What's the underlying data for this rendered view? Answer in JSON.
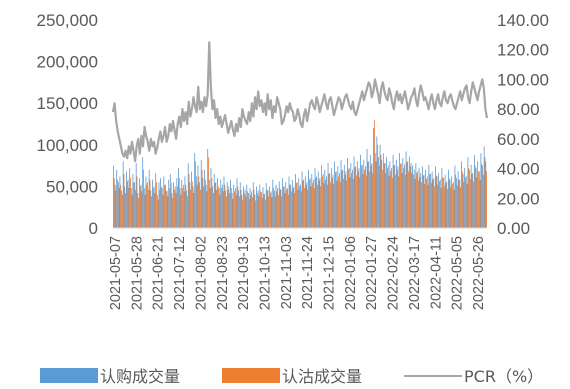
{
  "chart_data": {
    "type": "bar",
    "title": "",
    "left_axis": {
      "ylim": [
        0,
        250000
      ],
      "ticks": [
        {
          "value": 0,
          "label": "0"
        },
        {
          "value": 50000,
          "label": "50,000"
        },
        {
          "value": 100000,
          "label": "100,000"
        },
        {
          "value": 150000,
          "label": "150,000"
        },
        {
          "value": 200000,
          "label": "200,000"
        },
        {
          "value": 250000,
          "label": "250,000"
        }
      ]
    },
    "right_axis": {
      "ylim": [
        0,
        140
      ],
      "ticks": [
        {
          "value": 0,
          "label": "0.00"
        },
        {
          "value": 20,
          "label": "20.00"
        },
        {
          "value": 40,
          "label": "40.00"
        },
        {
          "value": 60,
          "label": "60.00"
        },
        {
          "value": 80,
          "label": "80.00"
        },
        {
          "value": 100,
          "label": "100.00"
        },
        {
          "value": 120,
          "label": "120.00"
        },
        {
          "value": 140,
          "label": "140.00"
        }
      ]
    },
    "x_ticks": [
      "2021-05-07",
      "2021-05-28",
      "2021-06-21",
      "2021-07-12",
      "2021-08-02",
      "2021-08-23",
      "2021-09-13",
      "2021-10-13",
      "2021-11-03",
      "2021-11-24",
      "2021-12-15",
      "2022-01-06",
      "2022-01-27",
      "2022-02-24",
      "2022-03-17",
      "2022-04-11",
      "2022-05-05",
      "2022-05-26"
    ],
    "grid": false,
    "legend_position": "bottom",
    "series": [
      {
        "name": "认购成交量",
        "type": "bar",
        "axis": "left",
        "color": "#5B9BD5",
        "values": [
          75000,
          52000,
          70000,
          55000,
          62000,
          45000,
          80000,
          50000,
          68000,
          58000,
          72000,
          48000,
          65000,
          55000,
          78000,
          42000,
          60000,
          52000,
          85000,
          48000,
          62000,
          55000,
          70000,
          45000,
          58000,
          50000,
          66000,
          40000,
          55000,
          60000,
          48000,
          62000,
          52000,
          45000,
          58000,
          65000,
          42000,
          55000,
          50000,
          60000,
          72000,
          48000,
          58000,
          52000,
          62000,
          45000,
          78000,
          55000,
          68000,
          50000,
          90000,
          62000,
          75000,
          55000,
          82000,
          60000,
          70000,
          52000,
          95000,
          58000,
          72000,
          50000,
          65000,
          55000,
          60000,
          48000,
          58000,
          52000,
          62000,
          45000,
          55000,
          50000,
          58000,
          42000,
          52000,
          48000,
          60000,
          45000,
          55000,
          40000,
          50000,
          46000,
          52000,
          42000,
          48000,
          44000,
          55000,
          40000,
          50000,
          45000,
          52000,
          43000,
          49000,
          41000,
          54000,
          46000,
          50000,
          44000,
          58000,
          45000,
          52000,
          48000,
          56000,
          46000,
          60000,
          50000,
          55000,
          48000,
          62000,
          52000,
          58000,
          50000,
          65000,
          55000,
          60000,
          52000,
          68000,
          58000,
          62000,
          55000,
          70000,
          60000,
          65000,
          58000,
          72000,
          62000,
          68000,
          60000,
          75000,
          65000,
          70000,
          62000,
          78000,
          66000,
          72000,
          64000,
          80000,
          68000,
          74000,
          66000,
          82000,
          70000,
          76000,
          68000,
          84000,
          72000,
          78000,
          70000,
          86000,
          74000,
          80000,
          72000,
          88000,
          76000,
          82000,
          74000,
          95000,
          80000,
          88000,
          78000,
          120000,
          90000,
          110000,
          85000,
          100000,
          82000,
          90000,
          78000,
          85000,
          75000,
          80000,
          72000,
          88000,
          76000,
          82000,
          74000,
          90000,
          78000,
          84000,
          76000,
          92000,
          80000,
          86000,
          78000,
          75000,
          70000,
          78000,
          68000,
          72000,
          66000,
          74000,
          64000,
          70000,
          62000,
          76000,
          65000,
          68000,
          60000,
          74000,
          62000,
          66000,
          58000,
          72000,
          60000,
          64000,
          56000,
          70000,
          58000,
          62000,
          55000,
          75000,
          60000,
          68000,
          58000,
          80000,
          65000,
          72000,
          62000,
          85000,
          70000,
          76000,
          66000,
          88000,
          72000,
          80000,
          68000,
          90000,
          75000,
          98000,
          80000
        ]
      },
      {
        "name": "认沽成交量",
        "type": "bar",
        "axis": "left",
        "color": "#ED7D31",
        "values": [
          60000,
          45000,
          58000,
          48000,
          52000,
          40000,
          65000,
          42000,
          56000,
          48000,
          60000,
          40000,
          55000,
          46000,
          62000,
          36000,
          50000,
          44000,
          70000,
          40000,
          52000,
          46000,
          58000,
          38000,
          48000,
          42000,
          55000,
          34000,
          46000,
          50000,
          40000,
          52000,
          44000,
          38000,
          48000,
          54000,
          36000,
          46000,
          42000,
          50000,
          60000,
          40000,
          48000,
          44000,
          52000,
          38000,
          65000,
          46000,
          56000,
          42000,
          80000,
          52000,
          62000,
          46000,
          70000,
          50000,
          58000,
          44000,
          85000,
          48000,
          60000,
          42000,
          54000,
          46000,
          50000,
          40000,
          48000,
          44000,
          52000,
          38000,
          46000,
          42000,
          48000,
          35000,
          44000,
          40000,
          50000,
          38000,
          46000,
          34000,
          42000,
          38000,
          44000,
          35000,
          40000,
          37000,
          46000,
          33000,
          42000,
          38000,
          44000,
          36000,
          41000,
          34000,
          45000,
          38000,
          42000,
          37000,
          48000,
          38000,
          44000,
          40000,
          47000,
          38000,
          50000,
          42000,
          46000,
          40000,
          52000,
          44000,
          48000,
          42000,
          54000,
          46000,
          50000,
          44000,
          57000,
          48000,
          52000,
          46000,
          58000,
          50000,
          54000,
          48000,
          60000,
          52000,
          57000,
          50000,
          62000,
          54000,
          58000,
          52000,
          65000,
          55000,
          60000,
          53000,
          67000,
          57000,
          62000,
          55000,
          69000,
          59000,
          64000,
          57000,
          71000,
          61000,
          66000,
          59000,
          73000,
          63000,
          68000,
          61000,
          75000,
          65000,
          70000,
          63000,
          80000,
          68000,
          75000,
          66000,
          130000,
          80000,
          100000,
          75000,
          88000,
          70000,
          78000,
          66000,
          72000,
          63000,
          68000,
          60000,
          75000,
          64000,
          70000,
          62000,
          77000,
          66000,
          72000,
          64000,
          79000,
          68000,
          74000,
          66000,
          64000,
          59000,
          66000,
          57000,
          61000,
          55000,
          63000,
          53000,
          59000,
          52000,
          65000,
          54000,
          58000,
          50000,
          63000,
          52000,
          56000,
          48000,
          61000,
          50000,
          54000,
          47000,
          60000,
          49000,
          53000,
          46000,
          64000,
          51000,
          58000,
          49000,
          68000,
          55000,
          61000,
          53000,
          72000,
          59000,
          65000,
          56000,
          75000,
          61000,
          68000,
          58000,
          77000,
          64000,
          85000,
          68000
        ]
      },
      {
        "name": "PCR（%）",
        "type": "line",
        "axis": "right",
        "color": "#A6A6A6",
        "values": [
          78,
          84,
          72,
          65,
          60,
          55,
          50,
          48,
          52,
          47,
          55,
          50,
          58,
          52,
          45,
          55,
          60,
          50,
          62,
          55,
          68,
          62,
          58,
          52,
          60,
          55,
          58,
          50,
          54,
          60,
          65,
          58,
          62,
          68,
          58,
          62,
          70,
          65,
          72,
          66,
          60,
          70,
          75,
          68,
          80,
          72,
          78,
          70,
          85,
          75,
          80,
          88,
          82,
          78,
          95,
          80,
          85,
          78,
          88,
          82,
          90,
          125,
          95,
          80,
          86,
          74,
          80,
          70,
          75,
          68,
          72,
          76,
          70,
          64,
          68,
          72,
          66,
          62,
          70,
          65,
          74,
          68,
          80,
          75,
          72,
          70,
          78,
          72,
          84,
          75,
          88,
          80,
          92,
          82,
          86,
          78,
          84,
          76,
          90,
          80,
          86,
          74,
          82,
          78,
          88,
          84,
          80,
          70,
          72,
          76,
          82,
          78,
          84,
          80,
          78,
          72,
          74,
          80,
          76,
          70,
          68,
          76,
          80,
          72,
          78,
          84,
          86,
          82,
          80,
          88,
          84,
          78,
          82,
          86,
          90,
          84,
          80,
          86,
          88,
          82,
          76,
          80,
          84,
          88,
          86,
          80,
          84,
          88,
          90,
          86,
          82,
          80,
          85,
          78,
          76,
          80,
          84,
          88,
          92,
          86,
          90,
          94,
          98,
          96,
          88,
          92,
          100,
          95,
          90,
          84,
          94,
          98,
          92,
          88,
          86,
          94,
          90,
          84,
          80,
          88,
          92,
          86,
          90,
          84,
          88,
          92,
          86,
          80,
          84,
          88,
          90,
          94,
          86,
          82,
          90,
          96,
          92,
          86,
          88,
          84,
          80,
          86,
          90,
          84,
          80,
          86,
          90,
          84,
          82,
          88,
          92,
          86,
          84,
          88,
          90,
          86,
          82,
          80,
          84,
          88,
          92,
          86,
          90,
          94,
          96,
          88,
          84,
          92,
          98,
          94,
          90,
          86,
          92,
          96,
          100,
          94,
          80,
          74
        ]
      }
    ]
  }
}
